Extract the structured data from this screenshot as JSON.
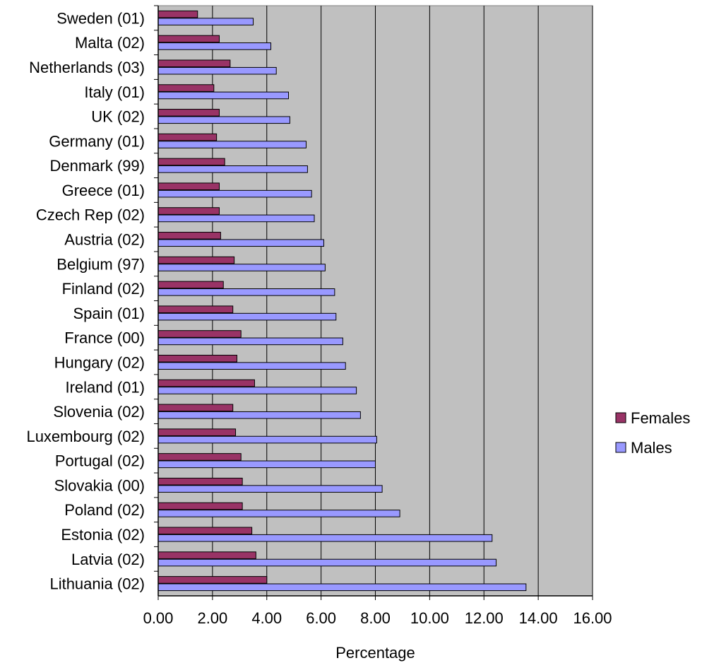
{
  "chart_data": {
    "type": "bar",
    "orientation": "horizontal",
    "title": "",
    "xlabel": "Percentage",
    "ylabel": "",
    "xlim": [
      0,
      16
    ],
    "x_ticks": [
      "0.00",
      "2.00",
      "4.00",
      "6.00",
      "8.00",
      "10.00",
      "12.00",
      "14.00",
      "16.00"
    ],
    "grid": "vertical",
    "legend_position": "right",
    "categories": [
      "Sweden (01)",
      "Malta (02)",
      "Netherlands (03)",
      "Italy (01)",
      "UK (02)",
      "Germany (01)",
      "Denmark (99)",
      "Greece (01)",
      "Czech Rep (02)",
      "Austria (02)",
      "Belgium (97)",
      "Finland (02)",
      "Spain (01)",
      "France (00)",
      "Hungary (02)",
      "Ireland (01)",
      "Slovenia (02)",
      "Luxembourg (02)",
      "Portugal (02)",
      "Slovakia (00)",
      "Poland (02)",
      "Estonia (02)",
      "Latvia  (02)",
      "Lithuania (02)"
    ],
    "series": [
      {
        "name": "Females",
        "color": "#993366",
        "values": [
          1.45,
          2.25,
          2.65,
          2.05,
          2.25,
          2.15,
          2.45,
          2.25,
          2.25,
          2.3,
          2.8,
          2.4,
          2.75,
          3.05,
          2.9,
          3.55,
          2.75,
          2.85,
          3.05,
          3.1,
          3.1,
          3.45,
          3.6,
          4.0
        ]
      },
      {
        "name": "Males",
        "color": "#9999ff",
        "values": [
          3.5,
          4.15,
          4.35,
          4.8,
          4.85,
          5.45,
          5.5,
          5.65,
          5.75,
          6.1,
          6.15,
          6.5,
          6.55,
          6.8,
          6.9,
          7.3,
          7.45,
          8.05,
          8.0,
          8.25,
          8.9,
          12.3,
          12.45,
          13.55
        ]
      }
    ],
    "plot_background": "#c0c0c0"
  }
}
